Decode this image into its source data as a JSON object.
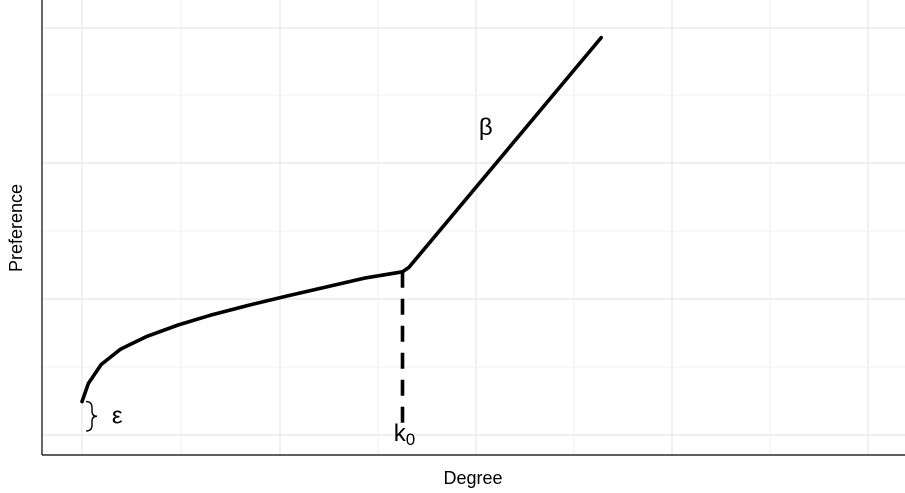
{
  "chart_data": {
    "type": "line",
    "title": "",
    "xlabel": "Degree",
    "ylabel": "Preference",
    "xlim": [
      0,
      1
    ],
    "ylim": [
      0,
      1
    ],
    "grid": true,
    "legend": "none",
    "colors": {
      "line": "#000000",
      "grid": "#ebebeb",
      "axis": "#000000",
      "background": "#ffffff"
    },
    "series": [
      {
        "segments": [
          {
            "style": "solid",
            "x": [
              0.0,
              0.01,
              0.03,
              0.06,
              0.1,
              0.15,
              0.2,
              0.26,
              0.32,
              0.38,
              0.44,
              0.5
            ],
            "y": [
              0.083,
              0.128,
              0.175,
              0.213,
              0.244,
              0.273,
              0.297,
              0.322,
              0.345,
              0.367,
              0.389,
              0.405
            ]
          },
          {
            "style": "solid",
            "x": [
              0.5,
              0.51,
              0.81
            ],
            "y": [
              0.405,
              0.416,
              0.986
            ]
          },
          {
            "style": "dashed",
            "x": [
              0.5,
              0.5
            ],
            "y": [
              0.405,
              0.01
            ]
          }
        ]
      }
    ],
    "annotations": [
      {
        "text": "β",
        "x": 0.63,
        "y": 0.745
      },
      {
        "text": "ε",
        "x": 0.055,
        "y": 0.028
      },
      {
        "text": "k",
        "subscript": "0",
        "x": 0.5,
        "y": -0.015
      }
    ],
    "brace": {
      "x": 0.0,
      "y_bottom": 0.01,
      "y_top": 0.083
    }
  }
}
